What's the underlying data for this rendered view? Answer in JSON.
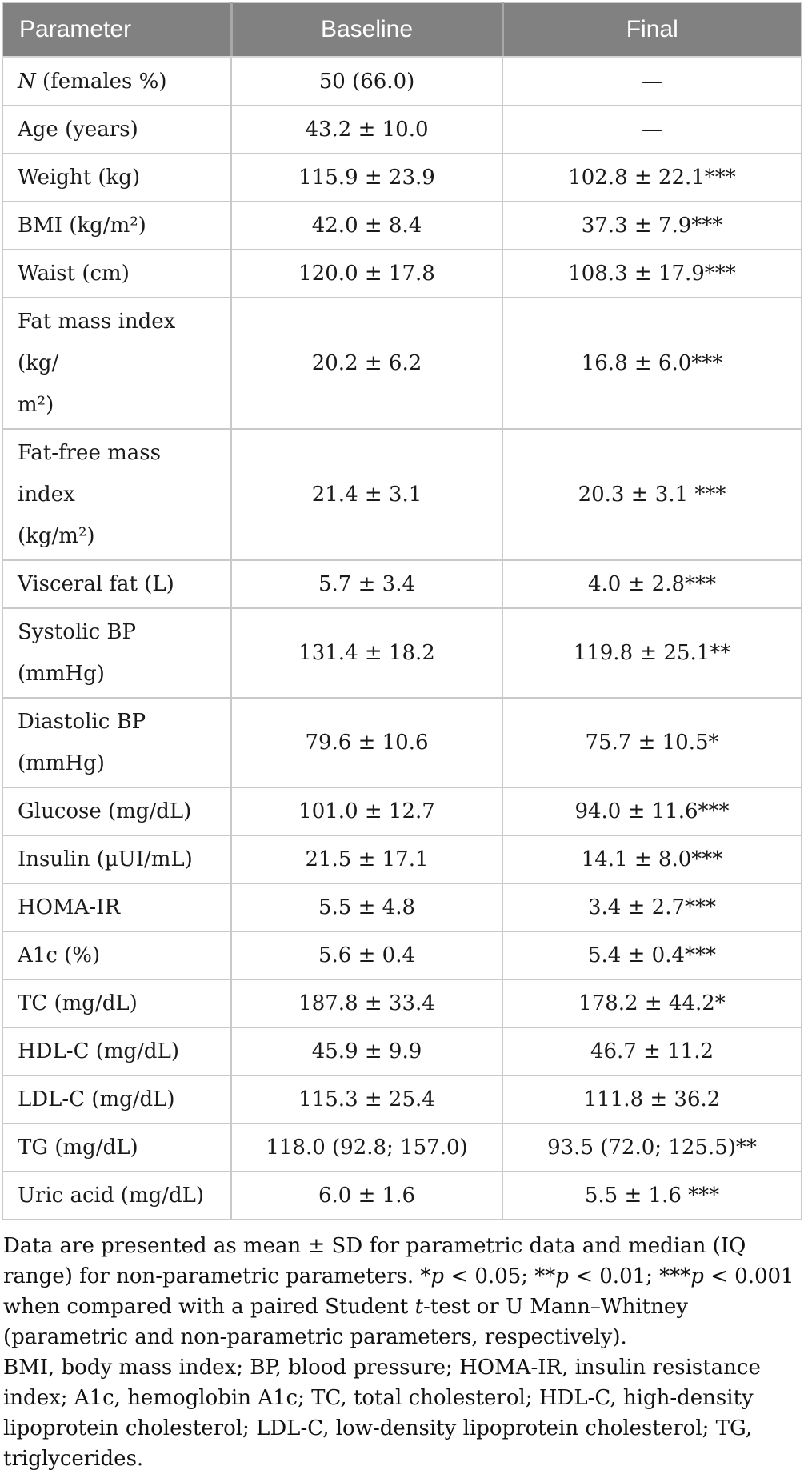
{
  "colors": {
    "header_bg": "#818181",
    "header_text": "#ffffff",
    "header_divider": "#a7a7a7",
    "cell_border": "#c9c9c9",
    "body_text": "#1a1a1a"
  },
  "table": {
    "headers": {
      "parameter": "Parameter",
      "baseline": "Baseline",
      "final": "Final"
    },
    "rows": [
      {
        "param_runs": [
          {
            "text": "N",
            "italic": true
          },
          {
            "text": " (females %)",
            "italic": false
          }
        ],
        "baseline": "50 (66.0)",
        "final": "—"
      },
      {
        "param_runs": [
          {
            "text": "Age (years)",
            "italic": false
          }
        ],
        "baseline": "43.2 ± 10.0",
        "final": "—"
      },
      {
        "param_runs": [
          {
            "text": "Weight (kg)",
            "italic": false
          }
        ],
        "baseline": "115.9 ± 23.9",
        "final": "102.8 ± 22.1***"
      },
      {
        "param_runs": [
          {
            "text": "BMI (kg/m²)",
            "italic": false
          }
        ],
        "baseline": "42.0 ± 8.4",
        "final": "37.3 ± 7.9***"
      },
      {
        "param_runs": [
          {
            "text": "Waist (cm)",
            "italic": false
          }
        ],
        "baseline": "120.0 ± 17.8",
        "final": "108.3 ± 17.9***"
      },
      {
        "param_runs": [
          {
            "text": "Fat mass index (kg/",
            "italic": false
          },
          {
            "br": true
          },
          {
            "text": "m²)",
            "italic": false
          }
        ],
        "baseline": "20.2 ± 6.2",
        "final": "16.8 ± 6.0***"
      },
      {
        "param_runs": [
          {
            "text": "Fat-free mass index",
            "italic": false
          },
          {
            "br": true
          },
          {
            "text": "(kg/m²)",
            "italic": false
          }
        ],
        "baseline": "21.4 ± 3.1",
        "final": "20.3 ± 3.1 ***"
      },
      {
        "param_runs": [
          {
            "text": "Visceral fat (L)",
            "italic": false
          }
        ],
        "baseline": "5.7 ± 3.4",
        "final": "4.0 ± 2.8***"
      },
      {
        "param_runs": [
          {
            "text": "Systolic BP (mmHg)",
            "italic": false
          }
        ],
        "baseline": "131.4 ± 18.2",
        "final": "119.8 ± 25.1**"
      },
      {
        "param_runs": [
          {
            "text": "Diastolic BP",
            "italic": false
          },
          {
            "br": true
          },
          {
            "text": "(mmHg)",
            "italic": false
          }
        ],
        "baseline": "79.6 ± 10.6",
        "final": "75.7 ± 10.5*"
      },
      {
        "param_runs": [
          {
            "text": "Glucose (mg/dL)",
            "italic": false
          }
        ],
        "baseline": "101.0 ± 12.7",
        "final": "94.0 ± 11.6***"
      },
      {
        "param_runs": [
          {
            "text": "Insulin (µUI/mL)",
            "italic": false
          }
        ],
        "baseline": "21.5 ± 17.1",
        "final": "14.1 ± 8.0***"
      },
      {
        "param_runs": [
          {
            "text": "HOMA-IR",
            "italic": false
          }
        ],
        "baseline": "5.5 ± 4.8",
        "final": "3.4 ± 2.7***"
      },
      {
        "param_runs": [
          {
            "text": "A1c (%)",
            "italic": false
          }
        ],
        "baseline": "5.6 ± 0.4",
        "final": "5.4 ± 0.4***"
      },
      {
        "param_runs": [
          {
            "text": "TC (mg/dL)",
            "italic": false
          }
        ],
        "baseline": "187.8 ± 33.4",
        "final": "178.2 ± 44.2*"
      },
      {
        "param_runs": [
          {
            "text": "HDL-C (mg/dL)",
            "italic": false
          }
        ],
        "baseline": "45.9 ± 9.9",
        "final": "46.7 ± 11.2"
      },
      {
        "param_runs": [
          {
            "text": "LDL-C (mg/dL)",
            "italic": false
          }
        ],
        "baseline": "115.3 ± 25.4",
        "final": "111.8 ± 36.2"
      },
      {
        "param_runs": [
          {
            "text": "TG (mg/dL)",
            "italic": false
          }
        ],
        "baseline": "118.0 (92.8; 157.0)",
        "final": "93.5 (72.0; 125.5)**"
      },
      {
        "param_runs": [
          {
            "text": "Uric acid (mg/dL)",
            "italic": false
          }
        ],
        "baseline": "6.0 ± 1.6",
        "final": "5.5 ± 1.6 ***"
      }
    ]
  },
  "footnotes": {
    "stats_runs": [
      {
        "text": "Data are presented as mean ± SD for parametric data and median (IQ range) for non-parametric parameters. *",
        "italic": false
      },
      {
        "text": "p",
        "italic": true
      },
      {
        "text": " < 0.05; **",
        "italic": false
      },
      {
        "text": "p",
        "italic": true
      },
      {
        "text": " < 0.01; ***",
        "italic": false
      },
      {
        "text": "p",
        "italic": true
      },
      {
        "text": " < 0.001 when compared with a paired Student ",
        "italic": false
      },
      {
        "text": "t",
        "italic": true
      },
      {
        "text": "-test or U Mann–Whitney (parametric and non-parametric parameters, respectively).",
        "italic": false
      }
    ],
    "abbreviations": "BMI, body mass index; BP, blood pressure; HOMA-IR, insulin resistance index; A1c, hemoglobin A1c; TC, total cholesterol; HDL-C, high-density lipoprotein cholesterol; LDL-C, low-density lipoprotein cholesterol; TG, triglycerides."
  }
}
